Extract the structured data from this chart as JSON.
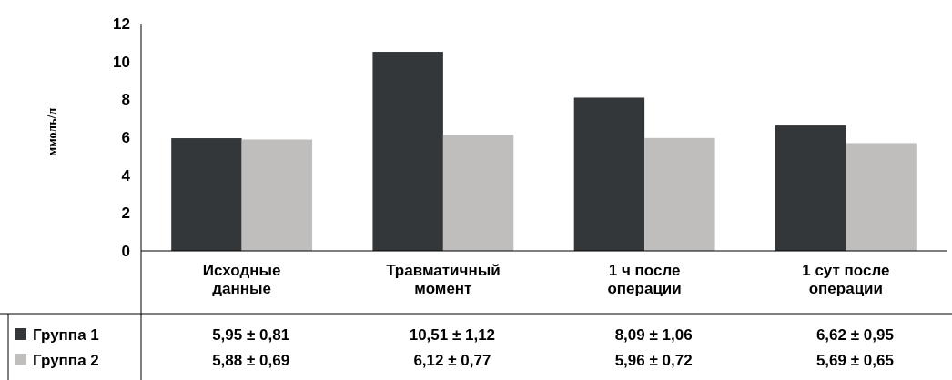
{
  "chart_data": {
    "type": "bar",
    "ylabel": "ммоль/л",
    "categories": [
      "Исходные\nданные",
      "Травматичный\nмомент",
      "1 ч после\nоперации",
      "1 сут после\nоперации"
    ],
    "series": [
      {
        "name": "Группа 1",
        "color": "#33373a",
        "values": [
          5.95,
          10.51,
          8.09,
          6.62
        ],
        "value_labels": [
          "5,95 ± 0,81",
          "10,51 ± 1,12",
          "8,09 ± 1,06",
          "6,62 ± 0,95"
        ]
      },
      {
        "name": "Группа 2",
        "color": "#bfbebd",
        "values": [
          5.88,
          6.12,
          5.96,
          5.69
        ],
        "value_labels": [
          "5,88 ± 0,69",
          "6,12 ± 0,77",
          "5,96 ± 0,72",
          "5,69 ± 0,65"
        ]
      }
    ],
    "ylim": [
      0,
      12
    ],
    "yticks": [
      0,
      2,
      4,
      6,
      8,
      10,
      12
    ],
    "grid": false,
    "legend": "bottom left"
  }
}
